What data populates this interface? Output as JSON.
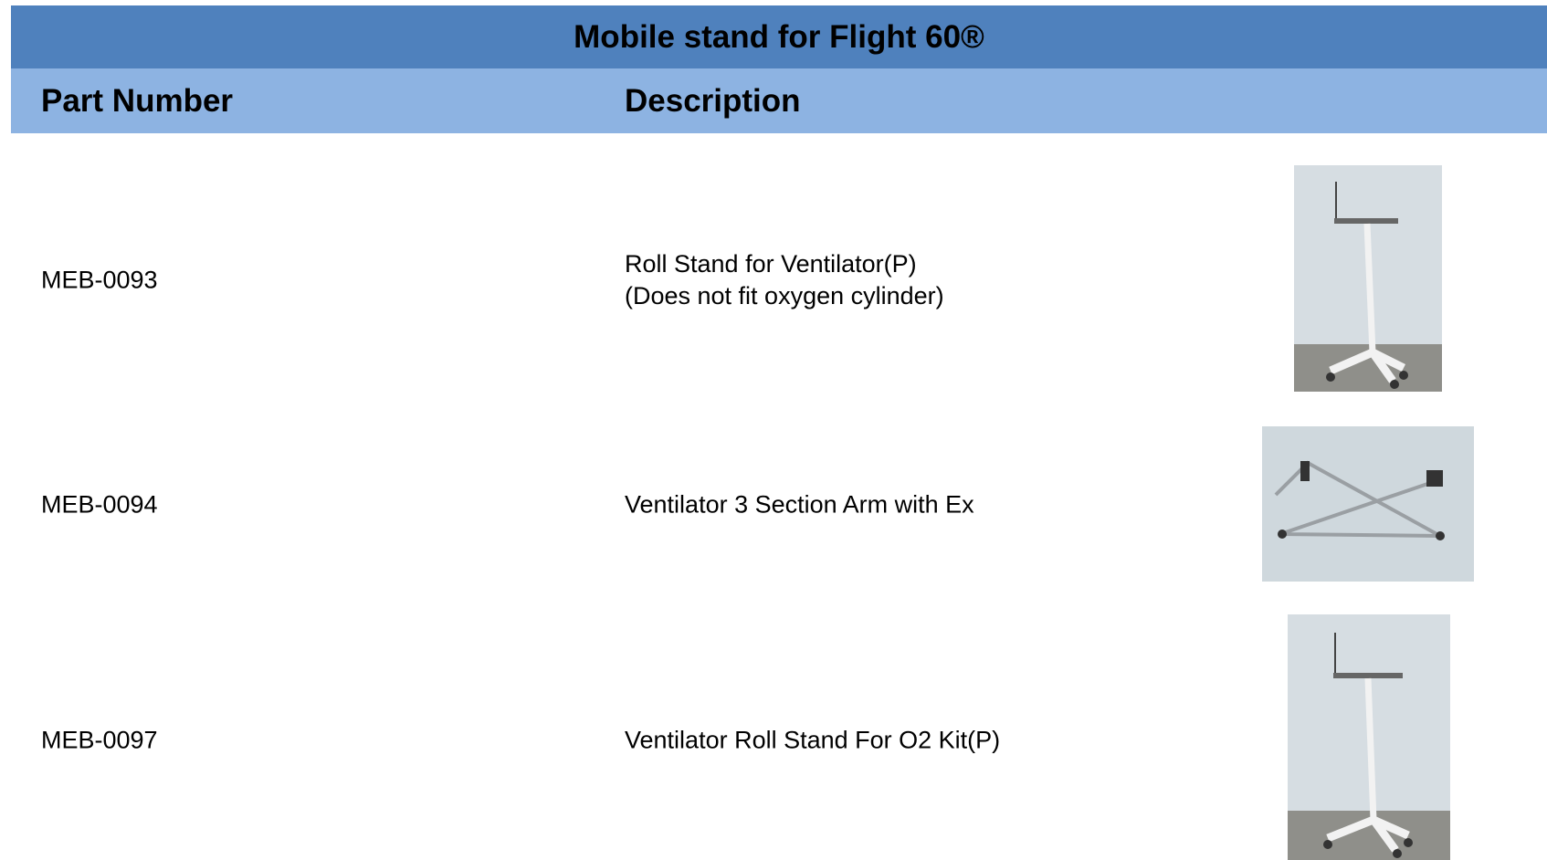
{
  "header": {
    "title": "Mobile stand for Flight 60®"
  },
  "table": {
    "columns": [
      "Part Number",
      "Description"
    ],
    "rows": [
      {
        "part": "MEB-0093",
        "description": [
          "Roll Stand for Ventilator(P)",
          "(Does not fit oxygen cylinder)"
        ]
      },
      {
        "part": "MEB-0094",
        "description": [
          "Ventilator 3 Section Arm with Ex"
        ]
      },
      {
        "part": "MEB-0097",
        "description": [
          "Ventilator Roll Stand For O2 Kit(P)"
        ]
      }
    ]
  }
}
